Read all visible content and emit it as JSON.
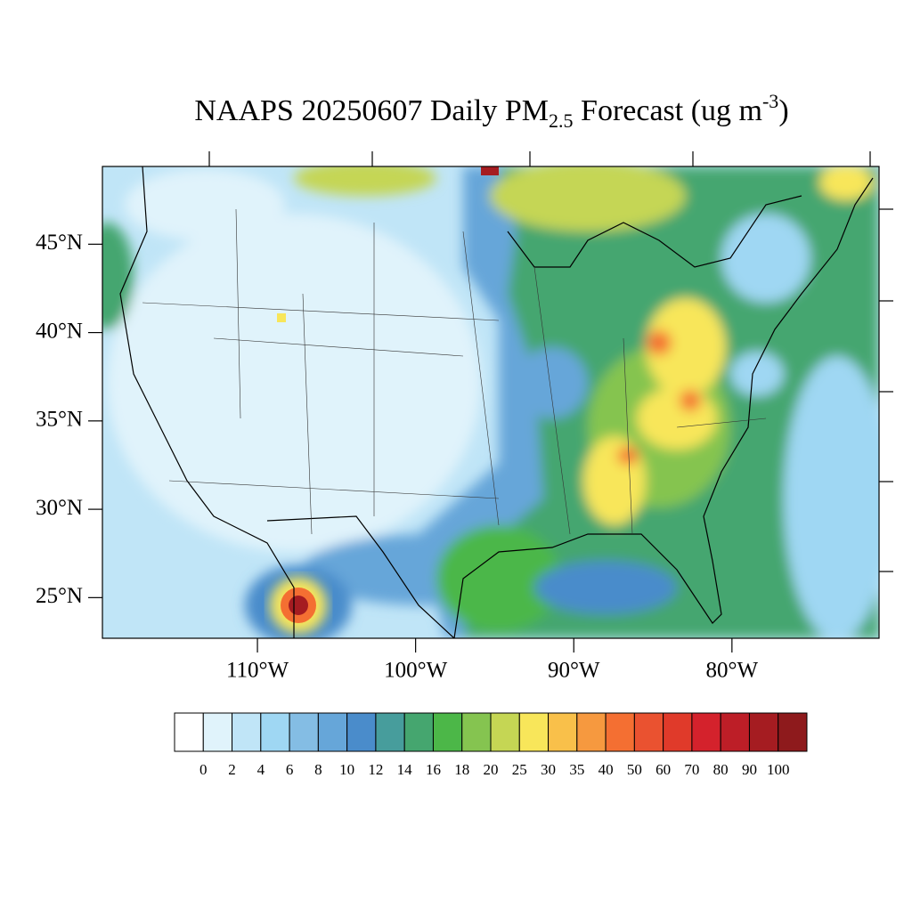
{
  "title": {
    "main": "NAAPS 20250607 Daily PM",
    "subscript": "2.5",
    "after_subscript": " Forecast (ug m",
    "superscript": "-3",
    "end": ")"
  },
  "map": {
    "lon_range": [
      -119.8,
      -70.7
    ],
    "lat_range": [
      22.7,
      49.4
    ],
    "lat_ticks": [
      {
        "value": 45,
        "label": "45°N"
      },
      {
        "value": 40,
        "label": "40°N"
      },
      {
        "value": 35,
        "label": "35°N"
      },
      {
        "value": 30,
        "label": "30°N"
      },
      {
        "value": 25,
        "label": "25°N"
      }
    ],
    "lon_ticks": [
      {
        "value": -110,
        "label": "110°W"
      },
      {
        "value": -100,
        "label": "100°W"
      },
      {
        "value": -90,
        "label": "90°W"
      },
      {
        "value": -80,
        "label": "80°W"
      }
    ]
  },
  "colorbar": {
    "labels": [
      0,
      2,
      4,
      6,
      8,
      10,
      12,
      14,
      16,
      18,
      20,
      25,
      30,
      35,
      40,
      50,
      60,
      70,
      80,
      90,
      100
    ],
    "colors": [
      "#ffffff",
      "#e0f3fb",
      "#c0e5f7",
      "#9fd7f3",
      "#84bde4",
      "#66a6d9",
      "#4a8ccb",
      "#479d9c",
      "#45a66f",
      "#4cb748",
      "#85c450",
      "#c5d654",
      "#f8e65a",
      "#f9c04a",
      "#f6993f",
      "#f46f32",
      "#ea5230",
      "#e03a2a",
      "#d4222c",
      "#bd1e27",
      "#a51c21",
      "#8e1a1c"
    ]
  }
}
